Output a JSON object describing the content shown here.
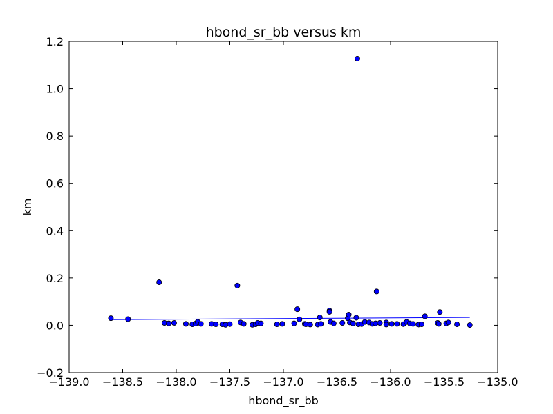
{
  "chart_data": {
    "type": "scatter",
    "title": "hbond_sr_bb versus km",
    "xlabel": "hbond_sr_bb",
    "ylabel": "km",
    "xlim": [
      -139.0,
      -135.0
    ],
    "ylim": [
      -0.2,
      1.2
    ],
    "xticks": [
      -139.0,
      -138.5,
      -138.0,
      -137.5,
      -137.0,
      -136.5,
      -136.0,
      -135.5,
      -135.0
    ],
    "xtick_labels": [
      "−139.0",
      "−138.5",
      "−138.0",
      "−137.5",
      "−137.0",
      "−136.5",
      "−136.0",
      "−135.5",
      "−135.0"
    ],
    "yticks": [
      -0.2,
      0.0,
      0.2,
      0.4,
      0.6,
      0.8,
      1.0,
      1.2
    ],
    "ytick_labels": [
      "−0.2",
      "0.0",
      "0.2",
      "0.4",
      "0.6",
      "0.8",
      "1.0",
      "1.2"
    ],
    "grid": false,
    "marker_color": "#0000ff",
    "line_color": "#0000ff",
    "points": [
      [
        -138.61,
        0.03
      ],
      [
        -138.45,
        0.026
      ],
      [
        -138.16,
        0.182
      ],
      [
        -138.11,
        0.01
      ],
      [
        -138.07,
        0.008
      ],
      [
        -138.02,
        0.01
      ],
      [
        -137.91,
        0.006
      ],
      [
        -137.85,
        0.004
      ],
      [
        -137.82,
        0.007
      ],
      [
        -137.8,
        0.015
      ],
      [
        -137.77,
        0.006
      ],
      [
        -137.67,
        0.006
      ],
      [
        -137.63,
        0.004
      ],
      [
        -137.57,
        0.004
      ],
      [
        -137.54,
        0.002
      ],
      [
        -137.5,
        0.005
      ],
      [
        -137.43,
        0.168
      ],
      [
        -137.4,
        0.012
      ],
      [
        -137.37,
        0.006
      ],
      [
        -137.29,
        0.002
      ],
      [
        -137.26,
        0.004
      ],
      [
        -137.24,
        0.01
      ],
      [
        -137.21,
        0.008
      ],
      [
        -137.06,
        0.004
      ],
      [
        -137.01,
        0.006
      ],
      [
        -136.9,
        0.008
      ],
      [
        -136.87,
        0.068
      ],
      [
        -136.85,
        0.025
      ],
      [
        -136.8,
        0.006
      ],
      [
        -136.79,
        0.004
      ],
      [
        -136.75,
        0.003
      ],
      [
        -136.68,
        0.003
      ],
      [
        -136.66,
        0.033
      ],
      [
        -136.65,
        0.006
      ],
      [
        -136.57,
        0.062
      ],
      [
        -136.57,
        0.057
      ],
      [
        -136.56,
        0.014
      ],
      [
        -136.53,
        0.008
      ],
      [
        -136.45,
        0.01
      ],
      [
        -136.4,
        0.03
      ],
      [
        -136.39,
        0.045
      ],
      [
        -136.38,
        0.012
      ],
      [
        -136.35,
        0.008
      ],
      [
        -136.32,
        0.032
      ],
      [
        -136.31,
        1.127
      ],
      [
        -136.3,
        0.004
      ],
      [
        -136.27,
        0.005
      ],
      [
        -136.24,
        0.014
      ],
      [
        -136.2,
        0.012
      ],
      [
        -136.17,
        0.006
      ],
      [
        -136.14,
        0.008
      ],
      [
        -136.13,
        0.143
      ],
      [
        -136.1,
        0.01
      ],
      [
        -136.04,
        0.012
      ],
      [
        -136.04,
        0.003
      ],
      [
        -135.99,
        0.006
      ],
      [
        -135.94,
        0.006
      ],
      [
        -135.88,
        0.005
      ],
      [
        -135.85,
        0.014
      ],
      [
        -135.82,
        0.008
      ],
      [
        -135.79,
        0.006
      ],
      [
        -135.74,
        0.003
      ],
      [
        -135.71,
        0.004
      ],
      [
        -135.68,
        0.038
      ],
      [
        -135.56,
        0.01
      ],
      [
        -135.55,
        0.006
      ],
      [
        -135.54,
        0.056
      ],
      [
        -135.48,
        0.008
      ],
      [
        -135.46,
        0.012
      ],
      [
        -135.38,
        0.004
      ],
      [
        -135.26,
        0.001
      ]
    ],
    "fit_line": {
      "x": [
        -138.61,
        -135.26
      ],
      "y": [
        0.024,
        0.033
      ]
    }
  }
}
